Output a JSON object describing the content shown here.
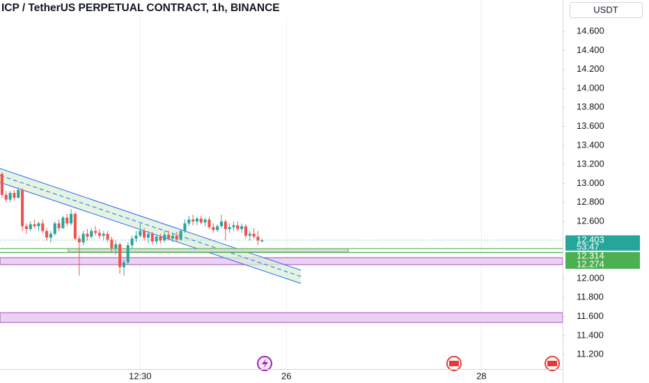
{
  "chart_data": {
    "type": "candlestick",
    "title": "ICP / TetherUS PERPETUAL CONTRACT, 1h, BINANCE",
    "currency": "USDT",
    "open": [
      13.1,
      12.88,
      12.83,
      12.9,
      12.85,
      12.93,
      12.55,
      12.52,
      12.57,
      12.55,
      12.58,
      12.5,
      12.43,
      12.47,
      12.58,
      12.53,
      12.64,
      12.58,
      12.68,
      12.42,
      12.38,
      12.47,
      12.44,
      12.5,
      12.48,
      12.45,
      12.47,
      12.41,
      12.32,
      12.36,
      12.12,
      12.17,
      12.35,
      12.42,
      12.45,
      12.5,
      12.43,
      12.47,
      12.39,
      12.44,
      12.4,
      12.46,
      12.42,
      12.45,
      12.41,
      12.5,
      12.58,
      12.62,
      12.6,
      12.63,
      12.59,
      12.62,
      12.54,
      12.51,
      12.55,
      12.6,
      12.52,
      12.54,
      12.56,
      12.52,
      12.55,
      12.45,
      12.47,
      12.44,
      12.39
    ],
    "high": [
      13.12,
      12.92,
      12.92,
      12.93,
      12.96,
      12.95,
      12.58,
      12.6,
      12.62,
      12.6,
      12.62,
      12.53,
      12.5,
      12.6,
      12.62,
      12.66,
      12.68,
      12.73,
      12.7,
      12.45,
      12.5,
      12.52,
      12.53,
      12.55,
      12.52,
      12.5,
      12.5,
      12.44,
      12.4,
      12.38,
      12.2,
      12.38,
      12.45,
      12.5,
      12.58,
      12.53,
      12.5,
      12.49,
      12.46,
      12.47,
      12.5,
      12.5,
      12.48,
      12.49,
      12.52,
      12.62,
      12.66,
      12.67,
      12.65,
      12.66,
      12.64,
      12.65,
      12.58,
      12.57,
      12.67,
      12.62,
      12.58,
      12.6,
      12.6,
      12.58,
      12.57,
      12.5,
      12.53,
      12.5,
      12.42
    ],
    "low": [
      12.85,
      12.8,
      12.8,
      12.82,
      12.84,
      12.5,
      12.47,
      12.5,
      12.53,
      12.5,
      12.48,
      12.4,
      12.38,
      12.45,
      12.5,
      12.52,
      12.55,
      12.56,
      12.4,
      12.03,
      12.35,
      12.4,
      12.42,
      12.45,
      12.42,
      12.4,
      12.38,
      12.28,
      12.25,
      12.05,
      12.03,
      12.15,
      12.32,
      12.38,
      12.43,
      12.4,
      12.37,
      12.36,
      12.36,
      12.37,
      12.38,
      12.4,
      12.38,
      12.39,
      12.4,
      12.48,
      12.55,
      12.56,
      12.56,
      12.57,
      12.55,
      12.52,
      12.48,
      12.49,
      12.53,
      12.4,
      12.48,
      12.5,
      12.5,
      12.48,
      12.42,
      12.4,
      12.42,
      12.35,
      12.38
    ],
    "close": [
      12.88,
      12.83,
      12.9,
      12.85,
      12.93,
      12.55,
      12.52,
      12.57,
      12.55,
      12.58,
      12.5,
      12.43,
      12.47,
      12.58,
      12.53,
      12.64,
      12.58,
      12.68,
      12.42,
      12.38,
      12.47,
      12.44,
      12.5,
      12.48,
      12.45,
      12.47,
      12.41,
      12.32,
      12.36,
      12.12,
      12.17,
      12.35,
      12.42,
      12.45,
      12.5,
      12.43,
      12.47,
      12.39,
      12.44,
      12.4,
      12.46,
      12.42,
      12.45,
      12.41,
      12.5,
      12.58,
      12.62,
      12.6,
      12.63,
      12.59,
      12.62,
      12.54,
      12.51,
      12.55,
      12.6,
      12.52,
      12.54,
      12.56,
      12.52,
      12.55,
      12.45,
      12.47,
      12.44,
      12.4,
      12.403
    ],
    "up_color": "#26a69a",
    "down_color": "#ef5350",
    "last_price": 12.403,
    "countdown": "53:47",
    "levels": [
      12.314,
      12.274
    ],
    "level_color": "#4caf50",
    "xlim": [
      -0.5,
      138
    ],
    "xticks": [
      {
        "value": 34,
        "label": "12:30"
      },
      {
        "value": 70,
        "label": "26"
      },
      {
        "value": 118,
        "label": "28"
      }
    ],
    "ylim": [
      11.047,
      14.93
    ],
    "yticks": [
      {
        "value": 14.6,
        "label": "14.600"
      },
      {
        "value": 14.4,
        "label": "14.400"
      },
      {
        "value": 14.2,
        "label": "14.200"
      },
      {
        "value": 14.0,
        "label": "14.000"
      },
      {
        "value": 13.8,
        "label": "13.800"
      },
      {
        "value": 13.6,
        "label": "13.600"
      },
      {
        "value": 13.4,
        "label": "13.400"
      },
      {
        "value": 13.2,
        "label": "13.200"
      },
      {
        "value": 13.0,
        "label": "13.000"
      },
      {
        "value": 12.8,
        "label": "12.800"
      },
      {
        "value": 12.6,
        "label": "12.600"
      },
      {
        "value": 12.0,
        "label": "12.000"
      },
      {
        "value": 11.8,
        "label": "11.800"
      },
      {
        "value": 11.6,
        "label": "11.600"
      },
      {
        "value": 11.4,
        "label": "11.400"
      },
      {
        "value": 11.2,
        "label": "11.200"
      }
    ],
    "grid": "vertical"
  }
}
